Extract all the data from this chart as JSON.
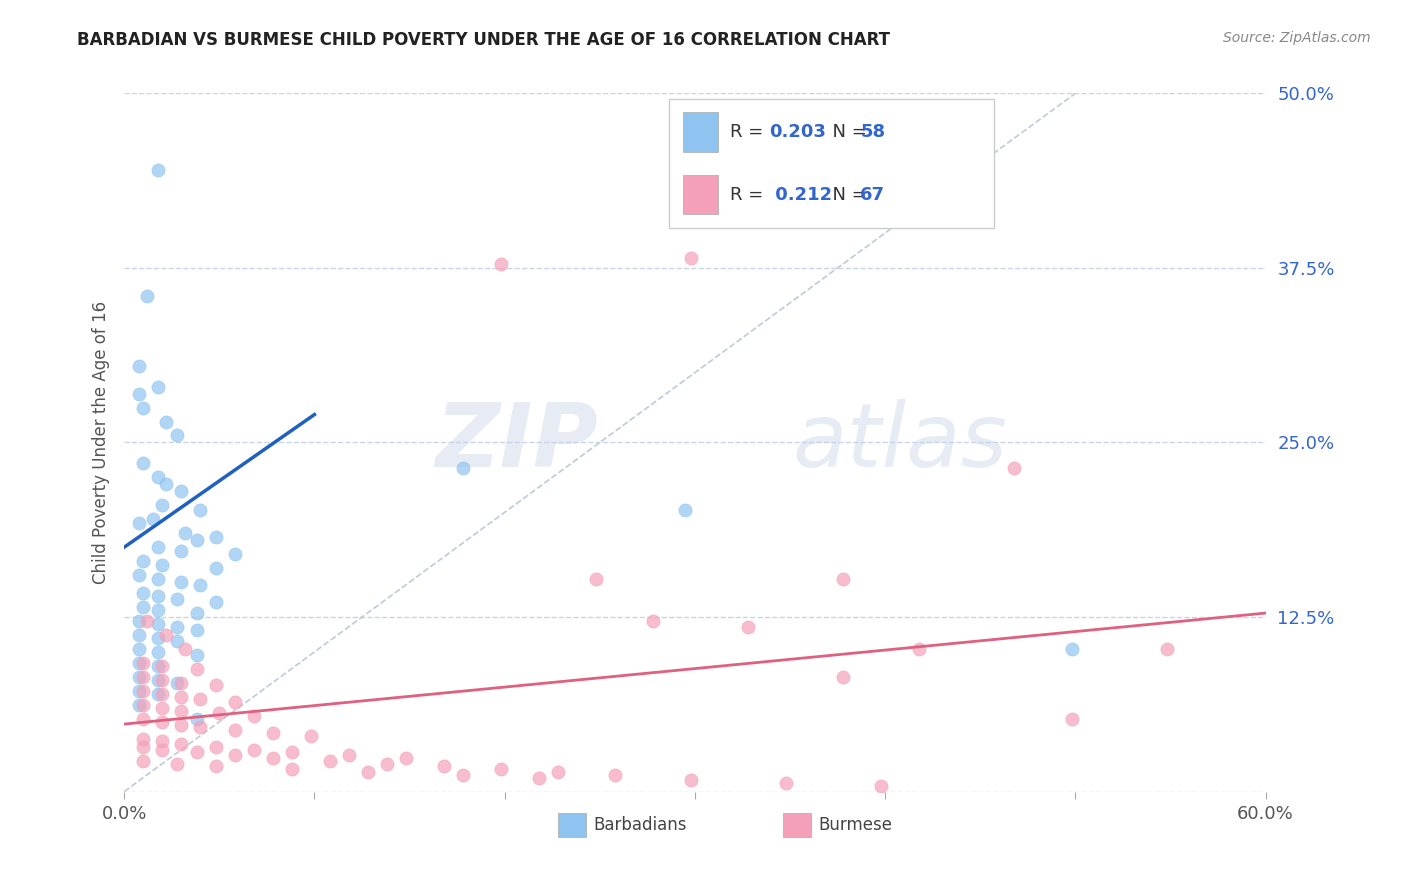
{
  "title": "BARBADIAN VS BURMESE CHILD POVERTY UNDER THE AGE OF 16 CORRELATION CHART",
  "source": "Source: ZipAtlas.com",
  "ylabel": "Child Poverty Under the Age of 16",
  "xlim": [
    0.0,
    0.6
  ],
  "ylim": [
    0.0,
    0.5
  ],
  "xticks": [
    0.0,
    0.1,
    0.2,
    0.3,
    0.4,
    0.5,
    0.6
  ],
  "yticks": [
    0.0,
    0.125,
    0.25,
    0.375,
    0.5
  ],
  "yticklabels": [
    "",
    "12.5%",
    "25.0%",
    "37.5%",
    "50.0%"
  ],
  "barbadian_color": "#90c4f0",
  "burmese_color": "#f4a0b8",
  "barbadian_line_color": "#2060c0",
  "burmese_line_color": "#e06080",
  "diagonal_color": "#b8c4d8",
  "r_barbadian": 0.203,
  "n_barbadian": 58,
  "r_burmese": 0.212,
  "n_burmese": 67,
  "watermark_zip": "ZIP",
  "watermark_atlas": "atlas",
  "background_color": "#ffffff",
  "grid_color": "#c8d4e8",
  "text_blue": "#3366cc",
  "text_dark": "#333333",
  "barbadian_scatter": [
    [
      0.018,
      0.445
    ],
    [
      0.008,
      0.305
    ],
    [
      0.012,
      0.355
    ],
    [
      0.018,
      0.29
    ],
    [
      0.008,
      0.285
    ],
    [
      0.01,
      0.275
    ],
    [
      0.022,
      0.265
    ],
    [
      0.028,
      0.255
    ],
    [
      0.01,
      0.235
    ],
    [
      0.018,
      0.225
    ],
    [
      0.022,
      0.22
    ],
    [
      0.03,
      0.215
    ],
    [
      0.02,
      0.205
    ],
    [
      0.04,
      0.202
    ],
    [
      0.015,
      0.195
    ],
    [
      0.008,
      0.192
    ],
    [
      0.032,
      0.185
    ],
    [
      0.048,
      0.182
    ],
    [
      0.038,
      0.18
    ],
    [
      0.018,
      0.175
    ],
    [
      0.03,
      0.172
    ],
    [
      0.058,
      0.17
    ],
    [
      0.01,
      0.165
    ],
    [
      0.02,
      0.162
    ],
    [
      0.048,
      0.16
    ],
    [
      0.008,
      0.155
    ],
    [
      0.018,
      0.152
    ],
    [
      0.03,
      0.15
    ],
    [
      0.04,
      0.148
    ],
    [
      0.01,
      0.142
    ],
    [
      0.018,
      0.14
    ],
    [
      0.028,
      0.138
    ],
    [
      0.048,
      0.136
    ],
    [
      0.01,
      0.132
    ],
    [
      0.018,
      0.13
    ],
    [
      0.038,
      0.128
    ],
    [
      0.008,
      0.122
    ],
    [
      0.018,
      0.12
    ],
    [
      0.028,
      0.118
    ],
    [
      0.038,
      0.116
    ],
    [
      0.008,
      0.112
    ],
    [
      0.018,
      0.11
    ],
    [
      0.028,
      0.108
    ],
    [
      0.008,
      0.102
    ],
    [
      0.018,
      0.1
    ],
    [
      0.038,
      0.098
    ],
    [
      0.008,
      0.092
    ],
    [
      0.018,
      0.09
    ],
    [
      0.008,
      0.082
    ],
    [
      0.018,
      0.08
    ],
    [
      0.028,
      0.078
    ],
    [
      0.008,
      0.072
    ],
    [
      0.018,
      0.07
    ],
    [
      0.008,
      0.062
    ],
    [
      0.038,
      0.052
    ],
    [
      0.295,
      0.202
    ],
    [
      0.178,
      0.232
    ],
    [
      0.498,
      0.102
    ]
  ],
  "burmese_scatter": [
    [
      0.012,
      0.122
    ],
    [
      0.022,
      0.112
    ],
    [
      0.032,
      0.102
    ],
    [
      0.01,
      0.092
    ],
    [
      0.02,
      0.09
    ],
    [
      0.038,
      0.088
    ],
    [
      0.01,
      0.082
    ],
    [
      0.02,
      0.08
    ],
    [
      0.03,
      0.078
    ],
    [
      0.048,
      0.076
    ],
    [
      0.01,
      0.072
    ],
    [
      0.02,
      0.07
    ],
    [
      0.03,
      0.068
    ],
    [
      0.04,
      0.066
    ],
    [
      0.058,
      0.064
    ],
    [
      0.01,
      0.062
    ],
    [
      0.02,
      0.06
    ],
    [
      0.03,
      0.058
    ],
    [
      0.05,
      0.056
    ],
    [
      0.068,
      0.054
    ],
    [
      0.01,
      0.052
    ],
    [
      0.02,
      0.05
    ],
    [
      0.03,
      0.048
    ],
    [
      0.04,
      0.046
    ],
    [
      0.058,
      0.044
    ],
    [
      0.078,
      0.042
    ],
    [
      0.098,
      0.04
    ],
    [
      0.01,
      0.038
    ],
    [
      0.02,
      0.036
    ],
    [
      0.03,
      0.034
    ],
    [
      0.048,
      0.032
    ],
    [
      0.068,
      0.03
    ],
    [
      0.088,
      0.028
    ],
    [
      0.118,
      0.026
    ],
    [
      0.148,
      0.024
    ],
    [
      0.01,
      0.032
    ],
    [
      0.02,
      0.03
    ],
    [
      0.038,
      0.028
    ],
    [
      0.058,
      0.026
    ],
    [
      0.078,
      0.024
    ],
    [
      0.108,
      0.022
    ],
    [
      0.138,
      0.02
    ],
    [
      0.168,
      0.018
    ],
    [
      0.198,
      0.016
    ],
    [
      0.228,
      0.014
    ],
    [
      0.258,
      0.012
    ],
    [
      0.01,
      0.022
    ],
    [
      0.028,
      0.02
    ],
    [
      0.048,
      0.018
    ],
    [
      0.088,
      0.016
    ],
    [
      0.128,
      0.014
    ],
    [
      0.178,
      0.012
    ],
    [
      0.218,
      0.01
    ],
    [
      0.298,
      0.008
    ],
    [
      0.348,
      0.006
    ],
    [
      0.398,
      0.004
    ],
    [
      0.498,
      0.052
    ],
    [
      0.378,
      0.082
    ],
    [
      0.248,
      0.152
    ],
    [
      0.298,
      0.382
    ],
    [
      0.468,
      0.232
    ],
    [
      0.198,
      0.378
    ],
    [
      0.548,
      0.102
    ],
    [
      0.418,
      0.102
    ],
    [
      0.278,
      0.122
    ],
    [
      0.328,
      0.118
    ],
    [
      0.378,
      0.152
    ]
  ]
}
